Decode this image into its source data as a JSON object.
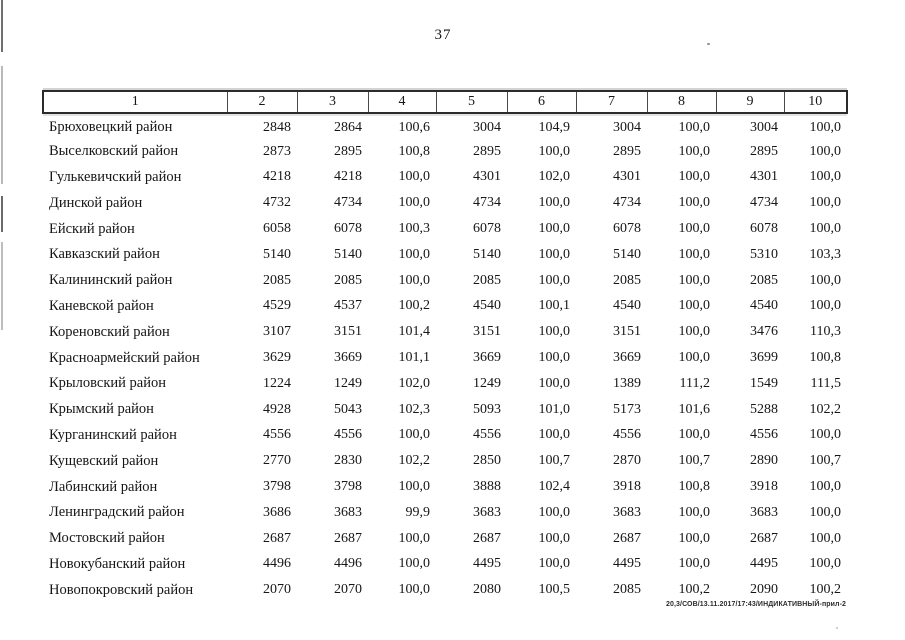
{
  "page": {
    "number": "37",
    "footer_note": "20,3/СОВ/13.11.2017/17:43/ИНДИКАТИВНЫЙ-прил-2"
  },
  "table": {
    "headers": [
      "1",
      "2",
      "3",
      "4",
      "5",
      "6",
      "7",
      "8",
      "9",
      "10"
    ],
    "rows": [
      {
        "name": "Брюховецкий район",
        "values": [
          "2848",
          "2864",
          "100,6",
          "3004",
          "104,9",
          "3004",
          "100,0",
          "3004",
          "100,0"
        ]
      },
      {
        "name": "Выселковский район",
        "values": [
          "2873",
          "2895",
          "100,8",
          "2895",
          "100,0",
          "2895",
          "100,0",
          "2895",
          "100,0"
        ]
      },
      {
        "name": "Гулькевичский район",
        "values": [
          "4218",
          "4218",
          "100,0",
          "4301",
          "102,0",
          "4301",
          "100,0",
          "4301",
          "100,0"
        ]
      },
      {
        "name": "Динской район",
        "values": [
          "4732",
          "4734",
          "100,0",
          "4734",
          "100,0",
          "4734",
          "100,0",
          "4734",
          "100,0"
        ]
      },
      {
        "name": "Ейский район",
        "values": [
          "6058",
          "6078",
          "100,3",
          "6078",
          "100,0",
          "6078",
          "100,0",
          "6078",
          "100,0"
        ]
      },
      {
        "name": "Кавказский район",
        "values": [
          "5140",
          "5140",
          "100,0",
          "5140",
          "100,0",
          "5140",
          "100,0",
          "5310",
          "103,3"
        ]
      },
      {
        "name": "Калининский район",
        "values": [
          "2085",
          "2085",
          "100,0",
          "2085",
          "100,0",
          "2085",
          "100,0",
          "2085",
          "100,0"
        ]
      },
      {
        "name": "Каневской район",
        "values": [
          "4529",
          "4537",
          "100,2",
          "4540",
          "100,1",
          "4540",
          "100,0",
          "4540",
          "100,0"
        ]
      },
      {
        "name": "Кореновский район",
        "values": [
          "3107",
          "3151",
          "101,4",
          "3151",
          "100,0",
          "3151",
          "100,0",
          "3476",
          "110,3"
        ]
      },
      {
        "name": "Красноармейский район",
        "values": [
          "3629",
          "3669",
          "101,1",
          "3669",
          "100,0",
          "3669",
          "100,0",
          "3699",
          "100,8"
        ]
      },
      {
        "name": "Крыловский район",
        "values": [
          "1224",
          "1249",
          "102,0",
          "1249",
          "100,0",
          "1389",
          "111,2",
          "1549",
          "111,5"
        ]
      },
      {
        "name": "Крымский район",
        "values": [
          "4928",
          "5043",
          "102,3",
          "5093",
          "101,0",
          "5173",
          "101,6",
          "5288",
          "102,2"
        ]
      },
      {
        "name": "Курганинский район",
        "values": [
          "4556",
          "4556",
          "100,0",
          "4556",
          "100,0",
          "4556",
          "100,0",
          "4556",
          "100,0"
        ]
      },
      {
        "name": "Кущевский район",
        "values": [
          "2770",
          "2830",
          "102,2",
          "2850",
          "100,7",
          "2870",
          "100,7",
          "2890",
          "100,7"
        ]
      },
      {
        "name": "Лабинский район",
        "values": [
          "3798",
          "3798",
          "100,0",
          "3888",
          "102,4",
          "3918",
          "100,8",
          "3918",
          "100,0"
        ]
      },
      {
        "name": "Ленинградский район",
        "values": [
          "3686",
          "3683",
          "99,9",
          "3683",
          "100,0",
          "3683",
          "100,0",
          "3683",
          "100,0"
        ]
      },
      {
        "name": "Мостовский район",
        "values": [
          "2687",
          "2687",
          "100,0",
          "2687",
          "100,0",
          "2687",
          "100,0",
          "2687",
          "100,0"
        ]
      },
      {
        "name": "Новокубанский район",
        "values": [
          "4496",
          "4496",
          "100,0",
          "4495",
          "100,0",
          "4495",
          "100,0",
          "4495",
          "100,0"
        ]
      },
      {
        "name": "Новопокровский район",
        "values": [
          "2070",
          "2070",
          "100,0",
          "2080",
          "100,5",
          "2085",
          "100,2",
          "2090",
          "100,2"
        ]
      }
    ]
  }
}
